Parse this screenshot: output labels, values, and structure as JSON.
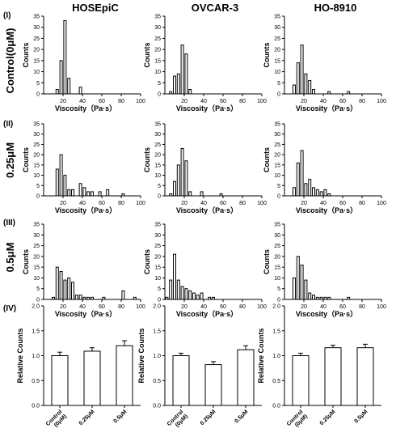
{
  "column_headers": [
    "HOSEpiC",
    "OVCAR-3",
    "HO-8910"
  ],
  "row_labels": [
    "(I)",
    "(II)",
    "(III)",
    "(IV)"
  ],
  "row_conditions": [
    "Control(0μM)",
    "0.25μM",
    "0.5μM"
  ],
  "chart_data": {
    "histograms": {
      "type": "bar",
      "xlabel": "Viscosity（Pa·s）",
      "ylabel": "Counts",
      "xlim": [
        0,
        100
      ],
      "ylim": [
        0,
        35
      ],
      "xticks": [
        20,
        40,
        60,
        80,
        100
      ],
      "yticks": [
        0,
        5,
        10,
        15,
        20,
        25,
        30,
        35
      ],
      "bin_width": 4,
      "panels": [
        [
          {
            "cell_line": "HOSEpiC",
            "condition": "Control(0μM)",
            "bins": [
              [
                14,
                2
              ],
              [
                18,
                15
              ],
              [
                22,
                33
              ],
              [
                26,
                7
              ],
              [
                38,
                3
              ]
            ]
          },
          {
            "cell_line": "OVCAR-3",
            "condition": "Control(0μM)",
            "bins": [
              [
                6,
                1
              ],
              [
                10,
                8
              ],
              [
                14,
                9
              ],
              [
                18,
                22
              ],
              [
                22,
                18
              ],
              [
                26,
                2
              ]
            ]
          },
          {
            "cell_line": "HO-8910",
            "condition": "Control(0μM)",
            "bins": [
              [
                10,
                4
              ],
              [
                14,
                14
              ],
              [
                18,
                22
              ],
              [
                22,
                9
              ],
              [
                26,
                6
              ],
              [
                30,
                2
              ],
              [
                46,
                1
              ],
              [
                66,
                1
              ]
            ]
          }
        ],
        [
          {
            "cell_line": "HOSEpiC",
            "condition": "0.25μM",
            "bins": [
              [
                14,
                13
              ],
              [
                18,
                20
              ],
              [
                22,
                10
              ],
              [
                26,
                3
              ],
              [
                30,
                3
              ],
              [
                38,
                6
              ],
              [
                42,
                4
              ],
              [
                46,
                2
              ],
              [
                50,
                2
              ],
              [
                58,
                2
              ],
              [
                66,
                3
              ],
              [
                82,
                1
              ]
            ]
          },
          {
            "cell_line": "OVCAR-3",
            "condition": "0.25μM",
            "bins": [
              [
                6,
                1
              ],
              [
                10,
                7
              ],
              [
                14,
                15
              ],
              [
                18,
                23
              ],
              [
                22,
                17
              ],
              [
                26,
                2
              ],
              [
                38,
                2
              ],
              [
                58,
                1
              ]
            ]
          },
          {
            "cell_line": "HO-8910",
            "condition": "0.25μM",
            "bins": [
              [
                10,
                4
              ],
              [
                14,
                16
              ],
              [
                18,
                22
              ],
              [
                22,
                6
              ],
              [
                26,
                8
              ],
              [
                30,
                4
              ],
              [
                34,
                3
              ],
              [
                38,
                2
              ],
              [
                42,
                3
              ],
              [
                46,
                1
              ]
            ]
          }
        ],
        [
          {
            "cell_line": "HOSEpiC",
            "condition": "0.5μM",
            "bins": [
              [
                10,
                1
              ],
              [
                14,
                15
              ],
              [
                18,
                13
              ],
              [
                22,
                9
              ],
              [
                26,
                10
              ],
              [
                30,
                8
              ],
              [
                34,
                2
              ],
              [
                38,
                2
              ],
              [
                42,
                1
              ],
              [
                46,
                1
              ],
              [
                50,
                1
              ],
              [
                62,
                1
              ],
              [
                82,
                4
              ],
              [
                94,
                1
              ]
            ]
          },
          {
            "cell_line": "OVCAR-3",
            "condition": "0.5μM",
            "bins": [
              [
                2,
                1
              ],
              [
                6,
                9
              ],
              [
                10,
                21
              ],
              [
                14,
                9
              ],
              [
                18,
                6
              ],
              [
                22,
                5
              ],
              [
                26,
                4
              ],
              [
                30,
                3
              ],
              [
                34,
                2
              ],
              [
                38,
                3
              ],
              [
                46,
                1
              ],
              [
                50,
                1
              ]
            ]
          },
          {
            "cell_line": "HO-8910",
            "condition": "0.5μM",
            "bins": [
              [
                10,
                10
              ],
              [
                14,
                20
              ],
              [
                18,
                16
              ],
              [
                22,
                9
              ],
              [
                26,
                3
              ],
              [
                30,
                2
              ],
              [
                34,
                1
              ],
              [
                38,
                1
              ],
              [
                42,
                1
              ],
              [
                46,
                1
              ],
              [
                66,
                1
              ]
            ]
          }
        ]
      ]
    },
    "relative": {
      "type": "bar",
      "ylabel": "Relative Counts",
      "ylim": [
        0,
        2.0
      ],
      "yticks": [
        "0.0",
        "0.5",
        "1.0",
        "1.5",
        "2.0"
      ],
      "categories": [
        [
          "Control",
          "(0μM)"
        ],
        [
          "0.25μM"
        ],
        [
          "0.5μM"
        ]
      ],
      "panels": [
        {
          "cell_line": "HOSEpiC",
          "values": [
            1.0,
            1.09,
            1.2
          ],
          "errors": [
            0.07,
            0.07,
            0.1
          ]
        },
        {
          "cell_line": "OVCAR-3",
          "values": [
            1.0,
            0.82,
            1.12
          ],
          "errors": [
            0.05,
            0.06,
            0.08
          ]
        },
        {
          "cell_line": "HO-8910",
          "values": [
            1.0,
            1.16,
            1.16
          ],
          "errors": [
            0.05,
            0.05,
            0.07
          ]
        }
      ]
    }
  }
}
